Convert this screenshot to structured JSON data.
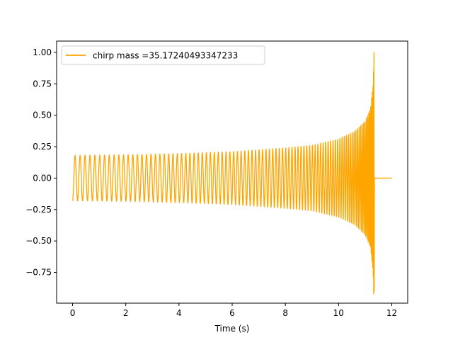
{
  "chart_data": {
    "type": "line",
    "title": "",
    "xlabel": "Time (s)",
    "ylabel": "",
    "xlim": [
      -0.6,
      12.6
    ],
    "ylim": [
      -0.995,
      1.09
    ],
    "xticks": [
      0,
      2,
      4,
      6,
      8,
      10,
      12
    ],
    "xtick_labels": [
      "0",
      "2",
      "4",
      "6",
      "8",
      "10",
      "12"
    ],
    "yticks": [
      -0.75,
      -0.5,
      -0.25,
      0.0,
      0.25,
      0.5,
      0.75,
      1.0
    ],
    "ytick_labels": [
      "−0.75",
      "−0.50",
      "−0.25",
      "0.00",
      "0.25",
      "0.50",
      "0.75",
      "1.00"
    ],
    "grid": false,
    "legend_position": "top-left",
    "series": [
      {
        "name": "chirp mass =35.17240493347233",
        "color": "#ffa500",
        "signal": {
          "kind": "inspiral-chirp",
          "t_start": 0.0,
          "t_merge": 11.33,
          "t_end": 12.0,
          "start_frequency_hz": 5.3,
          "envelope_points": [
            [
              0.0,
              0.18
            ],
            [
              2.0,
              0.185
            ],
            [
              4.0,
              0.195
            ],
            [
              6.0,
              0.21
            ],
            [
              8.0,
              0.24
            ],
            [
              9.0,
              0.26
            ],
            [
              10.0,
              0.31
            ],
            [
              10.6,
              0.37
            ],
            [
              11.0,
              0.45
            ],
            [
              11.2,
              0.55
            ],
            [
              11.3,
              0.75
            ],
            [
              11.33,
              1.0
            ]
          ],
          "post_merge_value": 0.0
        }
      }
    ]
  }
}
